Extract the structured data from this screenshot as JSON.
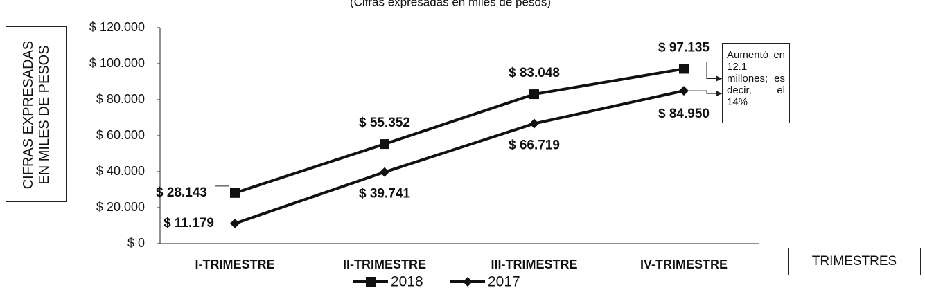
{
  "chart_data": {
    "type": "line",
    "subtitle": "(Cifras expresadas en miles de pesos)",
    "y_label": "CIFRAS EXPRESADAS EN MILES DE PESOS",
    "x_label": "TRIMESTRES",
    "annotation": "Aumentó en 12.1 millones; es decir, el 14%",
    "categories": [
      "I-TRIMESTRE",
      "II-TRIMESTRE",
      "III-TRIMESTRE",
      "IV-TRIMESTRE"
    ],
    "series": [
      {
        "name": "2018",
        "color": "#111111",
        "marker": "square",
        "values": [
          28143,
          55352,
          83048,
          97135
        ],
        "value_labels": [
          "$ 28.143",
          "$ 55.352",
          "$ 83.048",
          "$ 97.135"
        ]
      },
      {
        "name": "2017",
        "color": "#111111",
        "marker": "diamond",
        "values": [
          11179,
          39741,
          66719,
          84950
        ],
        "value_labels": [
          "$ 11.179",
          "$ 39.741",
          "$ 66.719",
          "$ 84.950"
        ]
      }
    ],
    "ylim": [
      0,
      120000
    ],
    "yticks": [
      {
        "value": 0,
        "label": "$ 0"
      },
      {
        "value": 20000,
        "label": "$ 20.000"
      },
      {
        "value": 40000,
        "label": "$ 40.000"
      },
      {
        "value": 60000,
        "label": "$ 60.000"
      },
      {
        "value": 80000,
        "label": "$ 80.000"
      },
      {
        "value": 100000,
        "label": "$ 100.000"
      },
      {
        "value": 120000,
        "label": "$ 120.000"
      }
    ],
    "grid": false,
    "legend": "bottom"
  }
}
